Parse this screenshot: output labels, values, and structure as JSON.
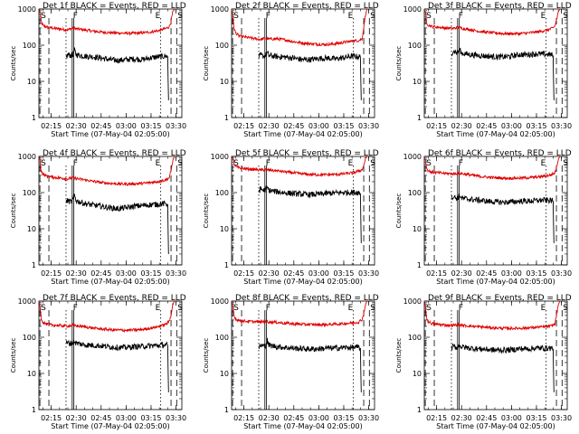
{
  "chart_data": {
    "type": "line",
    "layout": "3x3 grid",
    "shared": {
      "xlabel": "Start Time (07-May-04 02:05:00)",
      "ylabel": "Counts/sec",
      "y_scale": "log",
      "ylim": [
        1,
        1000
      ],
      "y_ticks": [
        "1",
        "10",
        "100",
        "1000"
      ],
      "xlim_minutes": [
        2.6,
        88.5
      ],
      "x_ticks": [
        {
          "label": "02:15",
          "minute": 10
        },
        {
          "label": "02:30",
          "minute": 25
        },
        {
          "label": "02:45",
          "minute": 40
        },
        {
          "label": "03:00",
          "minute": 55
        },
        {
          "label": "03:15",
          "minute": 70
        },
        {
          "label": "03:30",
          "minute": 85
        }
      ],
      "grid": false,
      "markers": [
        {
          "label": "S",
          "minute": 3.2,
          "style": "dashed"
        },
        {
          "label": "",
          "minute": 8.6,
          "style": "dashed"
        },
        {
          "label": "",
          "minute": 18.9,
          "style": "dotted"
        },
        {
          "label": "F",
          "minute": 22.6,
          "style": "solid"
        },
        {
          "label": "",
          "minute": 23.6,
          "style": "solid"
        },
        {
          "label": "E",
          "minute": 75.8,
          "style": "dotted"
        },
        {
          "label": "",
          "minute": 82.0,
          "style": "dashed"
        },
        {
          "label": "S",
          "minute": 85.4,
          "style": "dashed"
        }
      ]
    },
    "panels": [
      {
        "title": "Det 1f BLACK = Events, RED = LLD",
        "series": [
          {
            "color": "#e00000",
            "x": [
              3,
              4,
              5,
              7,
              10,
              15,
              20,
              23,
              25,
              30,
              35,
              40,
              45,
              50,
              55,
              60,
              65,
              70,
              75,
              79,
              81,
              82,
              83,
              84
            ],
            "y": [
              950,
              450,
              350,
              320,
              300,
              280,
              265,
              300,
              285,
              265,
              245,
              232,
              222,
              218,
              214,
              214,
              220,
              233,
              255,
              290,
              330,
              450,
              800,
              1000
            ]
          },
          {
            "color": "#000000",
            "x": [
              19,
              20,
              22,
              23,
              24,
              25,
              30,
              35,
              40,
              45,
              50,
              55,
              60,
              65,
              70,
              75,
              79,
              80,
              80.5
            ],
            "y": [
              45,
              55,
              52,
              55,
              72,
              55,
              50,
              48,
              44,
              40,
              38,
              40,
              42,
              40,
              45,
              48,
              50,
              48,
              3
            ]
          }
        ]
      },
      {
        "title": "Det 2f BLACK = Events, RED = LLD",
        "series": [
          {
            "color": "#e00000",
            "x": [
              3,
              4,
              5,
              7,
              10,
              15,
              20,
              23,
              25,
              30,
              35,
              40,
              45,
              50,
              55,
              60,
              65,
              70,
              75,
              79,
              81,
              82,
              83,
              84
            ],
            "y": [
              950,
              300,
              220,
              180,
              170,
              155,
              145,
              155,
              148,
              150,
              140,
              125,
              115,
              110,
              106,
              105,
              110,
              120,
              130,
              135,
              150,
              300,
              700,
              1000
            ]
          },
          {
            "color": "#000000",
            "x": [
              19,
              20,
              22,
              23,
              24,
              25,
              30,
              35,
              40,
              45,
              50,
              55,
              60,
              65,
              70,
              75,
              79,
              80,
              80.5
            ],
            "y": [
              48,
              52,
              50,
              52,
              62,
              52,
              48,
              47,
              44,
              40,
              40,
              43,
              44,
              42,
              45,
              50,
              48,
              46,
              3
            ]
          }
        ]
      },
      {
        "title": "Det 3f BLACK = Events, RED = LLD",
        "series": [
          {
            "color": "#e00000",
            "x": [
              3,
              4,
              5,
              7,
              10,
              15,
              20,
              23,
              25,
              30,
              35,
              40,
              45,
              50,
              55,
              60,
              65,
              70,
              75,
              79,
              81,
              82,
              83,
              84
            ],
            "y": [
              950,
              420,
              360,
              330,
              320,
              300,
              290,
              310,
              295,
              270,
              245,
              228,
              218,
              210,
              208,
              210,
              218,
              232,
              252,
              285,
              330,
              480,
              800,
              1000
            ]
          },
          {
            "color": "#000000",
            "x": [
              19,
              20,
              22,
              23,
              24,
              25,
              30,
              35,
              40,
              45,
              50,
              55,
              60,
              65,
              70,
              75,
              79,
              80,
              80.5
            ],
            "y": [
              60,
              70,
              62,
              66,
              75,
              60,
              55,
              52,
              50,
              48,
              47,
              50,
              55,
              55,
              58,
              56,
              55,
              52,
              3
            ]
          }
        ]
      },
      {
        "title": "Det 4f BLACK = Events, RED = LLD",
        "series": [
          {
            "color": "#e00000",
            "x": [
              3,
              4,
              5,
              7,
              10,
              15,
              20,
              23,
              25,
              30,
              35,
              40,
              45,
              50,
              55,
              60,
              65,
              70,
              75,
              79,
              81,
              82,
              83,
              84
            ],
            "y": [
              950,
              400,
              320,
              290,
              270,
              255,
              240,
              260,
              245,
              225,
              205,
              190,
              180,
              175,
              172,
              175,
              180,
              190,
              205,
              225,
              260,
              400,
              750,
              1000
            ]
          },
          {
            "color": "#000000",
            "x": [
              19,
              20,
              22,
              23,
              24,
              25,
              30,
              35,
              40,
              45,
              50,
              55,
              60,
              65,
              70,
              75,
              79,
              80,
              80.5
            ],
            "y": [
              55,
              60,
              55,
              62,
              85,
              60,
              50,
              45,
              42,
              38,
              36,
              38,
              42,
              44,
              46,
              48,
              50,
              48,
              2
            ]
          }
        ]
      },
      {
        "title": "Det 5f BLACK = Events, RED = LLD",
        "series": [
          {
            "color": "#e00000",
            "x": [
              3,
              4,
              5,
              7,
              10,
              15,
              20,
              23,
              25,
              30,
              35,
              40,
              45,
              50,
              55,
              60,
              65,
              70,
              75,
              79,
              81,
              82,
              83,
              84
            ],
            "y": [
              950,
              650,
              520,
              480,
              460,
              440,
              420,
              430,
              420,
              400,
              375,
              350,
              330,
              318,
              312,
              312,
              318,
              330,
              350,
              390,
              430,
              560,
              850,
              1000
            ]
          },
          {
            "color": "#000000",
            "x": [
              19,
              20,
              22,
              23,
              24,
              25,
              30,
              35,
              40,
              45,
              50,
              55,
              60,
              65,
              70,
              75,
              79,
              80,
              80.5
            ],
            "y": [
              110,
              125,
              115,
              120,
              135,
              115,
              105,
              98,
              94,
              90,
              88,
              90,
              95,
              98,
              100,
              102,
              100,
              95,
              4
            ]
          }
        ]
      },
      {
        "title": "Det 6f BLACK = Events, RED = LLD",
        "series": [
          {
            "color": "#e00000",
            "x": [
              3,
              4,
              5,
              7,
              10,
              15,
              20,
              23,
              25,
              30,
              35,
              40,
              45,
              50,
              55,
              60,
              65,
              70,
              75,
              79,
              81,
              82,
              83,
              84
            ],
            "y": [
              950,
              480,
              400,
              370,
              355,
              340,
              330,
              345,
              335,
              310,
              285,
              268,
              258,
              252,
              250,
              252,
              258,
              268,
              285,
              310,
              350,
              480,
              800,
              1000
            ]
          },
          {
            "color": "#000000",
            "x": [
              19,
              20,
              22,
              23,
              24,
              25,
              30,
              35,
              40,
              45,
              50,
              55,
              60,
              65,
              70,
              75,
              79,
              80,
              80.5
            ],
            "y": [
              72,
              78,
              70,
              75,
              85,
              70,
              65,
              62,
              58,
              55,
              54,
              55,
              58,
              58,
              60,
              62,
              60,
              58,
              4
            ]
          }
        ]
      },
      {
        "title": "Det 7f BLACK = Events, RED = LLD",
        "series": [
          {
            "color": "#e00000",
            "x": [
              3,
              4,
              5,
              7,
              10,
              15,
              20,
              23,
              25,
              30,
              35,
              40,
              45,
              50,
              55,
              60,
              65,
              70,
              75,
              79,
              81,
              82,
              83,
              84
            ],
            "y": [
              950,
              340,
              260,
              230,
              220,
              210,
              205,
              215,
              208,
              195,
              180,
              170,
              162,
              158,
              156,
              158,
              165,
              180,
              200,
              230,
              280,
              420,
              780,
              1000
            ]
          },
          {
            "color": "#000000",
            "x": [
              19,
              20,
              22,
              23,
              24,
              25,
              30,
              35,
              40,
              45,
              50,
              55,
              60,
              65,
              70,
              75,
              79,
              80,
              80.5
            ],
            "y": [
              65,
              70,
              68,
              70,
              78,
              68,
              62,
              60,
              58,
              55,
              52,
              52,
              55,
              56,
              58,
              60,
              62,
              60,
              3
            ]
          }
        ]
      },
      {
        "title": "Det 8f BLACK = Events, RED = LLD",
        "series": [
          {
            "color": "#e00000",
            "x": [
              3,
              4,
              5,
              7,
              10,
              15,
              20,
              23,
              25,
              30,
              35,
              40,
              45,
              50,
              55,
              60,
              65,
              70,
              75,
              79,
              81,
              82,
              83,
              84
            ],
            "y": [
              950,
              420,
              320,
              290,
              280,
              270,
              265,
              275,
              268,
              258,
              245,
              235,
              228,
              225,
              222,
              225,
              230,
              238,
              248,
              265,
              310,
              450,
              800,
              1000
            ]
          },
          {
            "color": "#000000",
            "x": [
              19,
              20,
              22,
              23,
              24,
              25,
              30,
              35,
              40,
              45,
              50,
              55,
              60,
              65,
              70,
              75,
              79,
              80,
              80.5
            ],
            "y": [
              52,
              60,
              56,
              60,
              82,
              60,
              55,
              52,
              50,
              48,
              47,
              48,
              50,
              50,
              52,
              52,
              53,
              50,
              3
            ]
          }
        ]
      },
      {
        "title": "Det 9f BLACK = Events, RED = LLD",
        "series": [
          {
            "color": "#e00000",
            "x": [
              3,
              4,
              5,
              7,
              10,
              15,
              20,
              23,
              25,
              30,
              35,
              40,
              45,
              50,
              55,
              60,
              65,
              70,
              75,
              79,
              81,
              82,
              83,
              84
            ],
            "y": [
              950,
              340,
              270,
              240,
              228,
              218,
              212,
              225,
              215,
              205,
              195,
              188,
              182,
              178,
              176,
              178,
              182,
              188,
              195,
              205,
              230,
              380,
              750,
              1000
            ]
          },
          {
            "color": "#000000",
            "x": [
              19,
              20,
              22,
              23,
              24,
              25,
              30,
              35,
              40,
              45,
              50,
              55,
              60,
              65,
              70,
              75,
              79,
              80,
              80.5
            ],
            "y": [
              50,
              56,
              52,
              55,
              62,
              54,
              50,
              48,
              46,
              44,
              44,
              45,
              48,
              48,
              50,
              50,
              50,
              48,
              3
            ]
          }
        ]
      }
    ]
  }
}
